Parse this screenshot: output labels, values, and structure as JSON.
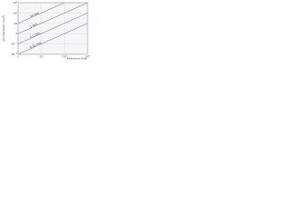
{
  "chart_data": {
    "type": "line",
    "x_label": "Frequency (Hz)",
    "y_label": "Acceleration (m/s²)",
    "x": [
      1,
      1000
    ],
    "series": [
      {
        "name": "0.01 mm",
        "color": "#5a6a7a",
        "values": [
          0.01,
          10
        ]
      },
      {
        "name": "0.1 mm",
        "color": "#5a6a7a",
        "values": [
          0.1,
          100
        ]
      },
      {
        "name": "1 mm",
        "color": "#5a6a7a",
        "values": [
          1,
          1000
        ]
      },
      {
        "name": "10 mm",
        "color": "#5a6a7a",
        "values": [
          10,
          10000
        ]
      }
    ],
    "xlim": [
      1,
      1000
    ],
    "ylim": [
      0.01,
      1000
    ],
    "xticks": [
      1,
      10,
      {
        "value": 100,
        "label": "10²"
      },
      {
        "value": 1000,
        "label": "10³"
      }
    ],
    "yticks": [
      {
        "value": 0.01,
        "label": "10⁻²"
      },
      {
        "value": 0.1,
        "label": "10⁻¹"
      },
      1,
      10,
      {
        "value": 100,
        "label": "10²"
      },
      {
        "value": 1000,
        "label": "10³"
      }
    ],
    "log_x": true,
    "log_y": true,
    "grid": true
  }
}
